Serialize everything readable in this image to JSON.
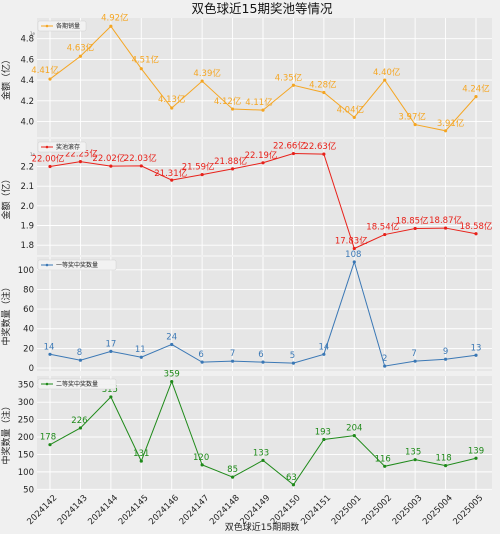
{
  "chart_data": {
    "type": "line",
    "title": "双色球近15期奖池等情况",
    "xlabel": "双色球近15期期数",
    "categories": [
      "2024142",
      "2024143",
      "2024144",
      "2024145",
      "2024146",
      "2024147",
      "2024148",
      "2024149",
      "2024150",
      "2024151",
      "2025001",
      "2025002",
      "2025003",
      "2025004",
      "2025005"
    ],
    "panels": [
      {
        "name": "各期销量",
        "ylabel": "金额（亿）",
        "color": "#f5a623",
        "ylim": [
          3.85,
          5.0
        ],
        "yticks": [
          4.0,
          4.2,
          4.4,
          4.6,
          4.8
        ],
        "ytick_labels": [
          "4.0",
          "4.2",
          "4.4",
          "4.6",
          "4.8"
        ],
        "axis_note": "1e",
        "values": [
          4.41,
          4.63,
          4.92,
          4.51,
          4.13,
          4.39,
          4.12,
          4.11,
          4.35,
          4.28,
          4.04,
          4.4,
          3.97,
          3.91,
          4.24
        ],
        "labels": [
          "4.41亿",
          "4.63亿",
          "4.92亿",
          "4.51亿",
          "4.13亿",
          "4.39亿",
          "4.12亿",
          "4.11亿",
          "4.35亿",
          "4.28亿",
          "4.04亿",
          "4.40亿",
          "3.97亿",
          "3.91亿",
          "4.24亿"
        ]
      },
      {
        "name": "奖池滚存",
        "ylabel": "金额（亿）",
        "color": "#e8211a",
        "ylim": [
          1.75,
          2.34
        ],
        "yticks": [
          1.8,
          1.9,
          2.0,
          2.1,
          2.2
        ],
        "ytick_labels": [
          "1.8",
          "1.9",
          "2.0",
          "2.1",
          "2.2"
        ],
        "axis_note": "1e",
        "values": [
          2.2,
          2.225,
          2.202,
          2.203,
          2.131,
          2.159,
          2.188,
          2.219,
          2.266,
          2.263,
          1.783,
          1.854,
          1.885,
          1.887,
          1.858
        ],
        "labels": [
          "22.00亿",
          "22.25亿",
          "22.02亿",
          "22.03亿",
          "21.31亿",
          "21.59亿",
          "21.88亿",
          "22.19亿",
          "22.66亿",
          "22.63亿",
          "17.83亿",
          "18.54亿",
          "18.85亿",
          "18.87亿",
          "18.58亿"
        ]
      },
      {
        "name": "一等奖中奖数量",
        "ylabel": "中奖数量（注）",
        "color": "#3b78b5",
        "ylim": [
          -3,
          113
        ],
        "yticks": [
          0,
          20,
          40,
          60,
          80,
          100
        ],
        "ytick_labels": [
          "0",
          "20",
          "40",
          "60",
          "80",
          "100"
        ],
        "values": [
          14,
          8,
          17,
          11,
          24,
          6,
          7,
          6,
          5,
          14,
          108,
          2,
          7,
          9,
          13
        ],
        "labels": [
          "14",
          "8",
          "17",
          "11",
          "24",
          "6",
          "7",
          "6",
          "5",
          "14",
          "108",
          "2",
          "7",
          "9",
          "13"
        ]
      },
      {
        "name": "二等奖中奖数量",
        "ylabel": "中奖数量（注）",
        "color": "#1f8a1a",
        "ylim": [
          48,
          375
        ],
        "yticks": [
          50,
          100,
          150,
          200,
          250,
          300,
          350
        ],
        "ytick_labels": [
          "50",
          "100",
          "150",
          "200",
          "250",
          "300",
          "350"
        ],
        "values": [
          178,
          226,
          315,
          131,
          359,
          120,
          85,
          133,
          63,
          193,
          204,
          116,
          135,
          118,
          139
        ],
        "labels": [
          "178",
          "226",
          "315",
          "131",
          "359",
          "120",
          "85",
          "133",
          "63",
          "193",
          "204",
          "116",
          "135",
          "118",
          "139"
        ]
      }
    ],
    "grid": true,
    "legend_position": "top-left"
  }
}
